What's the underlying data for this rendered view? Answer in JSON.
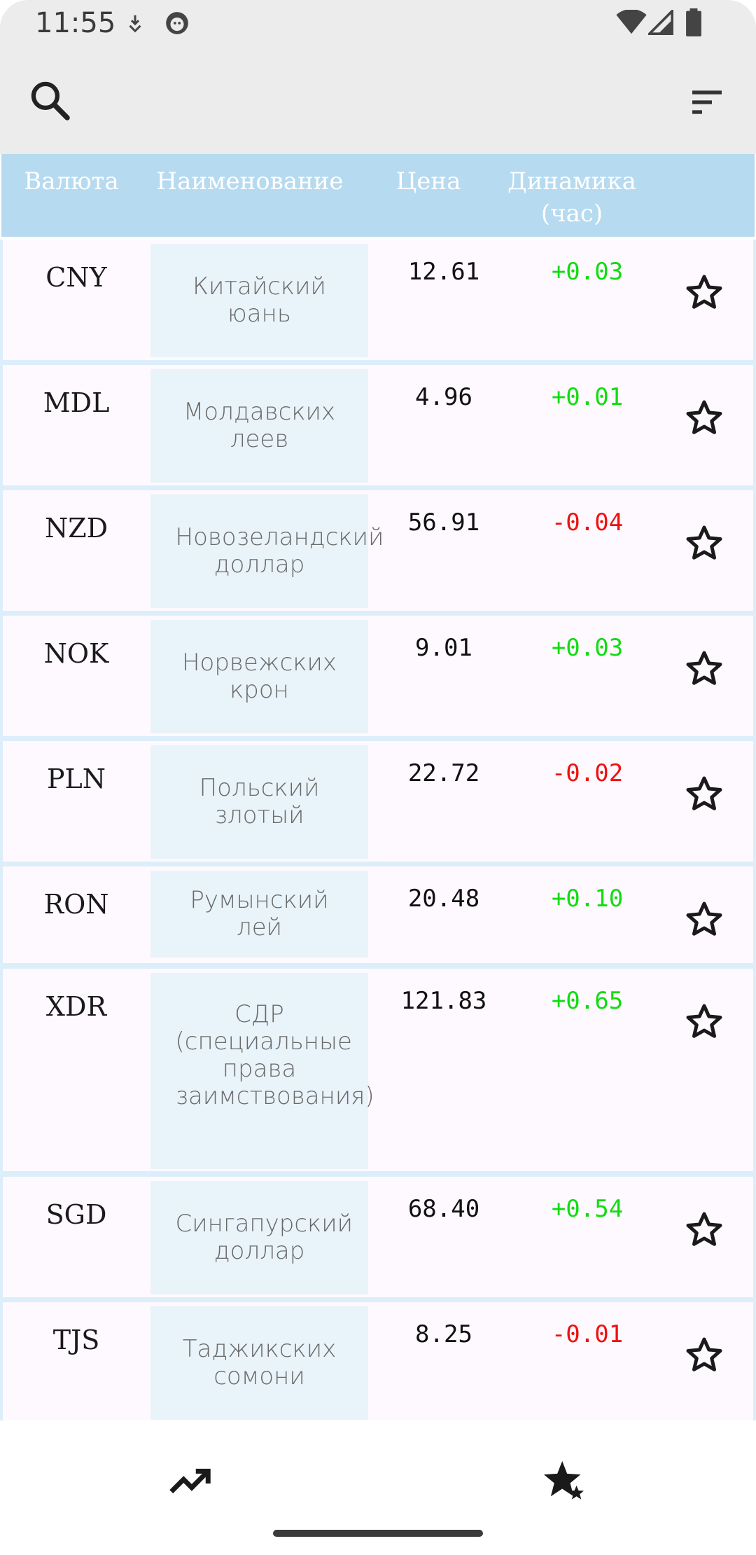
{
  "status_bar": {
    "time": "11:55"
  },
  "header": {
    "col_code": "Валюта",
    "col_name": "Наименование",
    "col_price": "Цена",
    "col_change_line1": "Динамика",
    "col_change_line2": "(час)"
  },
  "colors": {
    "positive": "#10dd10",
    "negative": "#ee1111",
    "header_bg": "#b6daef"
  },
  "rows": [
    {
      "code": "CNY",
      "name": "Китайский юань",
      "price": "12.61",
      "change": "+0.03",
      "direction": "up"
    },
    {
      "code": "MDL",
      "name": "Молдавских леев",
      "price": "4.96",
      "change": "+0.01",
      "direction": "up"
    },
    {
      "code": "NZD",
      "name": "Новозеландский доллар",
      "price": "56.91",
      "change": "-0.04",
      "direction": "down"
    },
    {
      "code": "NOK",
      "name": "Норвежских крон",
      "price": "9.01",
      "change": "+0.03",
      "direction": "up"
    },
    {
      "code": "PLN",
      "name": "Польский злотый",
      "price": "22.72",
      "change": "-0.02",
      "direction": "down"
    },
    {
      "code": "RON",
      "name": "Румынский лей",
      "price": "20.48",
      "change": "+0.10",
      "direction": "up"
    },
    {
      "code": "XDR",
      "name": "СДР (специальные права заимствования)",
      "price": "121.83",
      "change": "+0.65",
      "direction": "up"
    },
    {
      "code": "SGD",
      "name": "Сингапурский доллар",
      "price": "68.40",
      "change": "+0.54",
      "direction": "up"
    },
    {
      "code": "TJS",
      "name": "Таджикских сомони",
      "price": "8.25",
      "change": "-0.01",
      "direction": "down"
    }
  ],
  "icons": {
    "search": "search-icon",
    "sort": "sort-icon",
    "favorite": "star-outline-icon",
    "nav_rates": "trending-up-icon",
    "nav_favorites": "stars-icon"
  }
}
